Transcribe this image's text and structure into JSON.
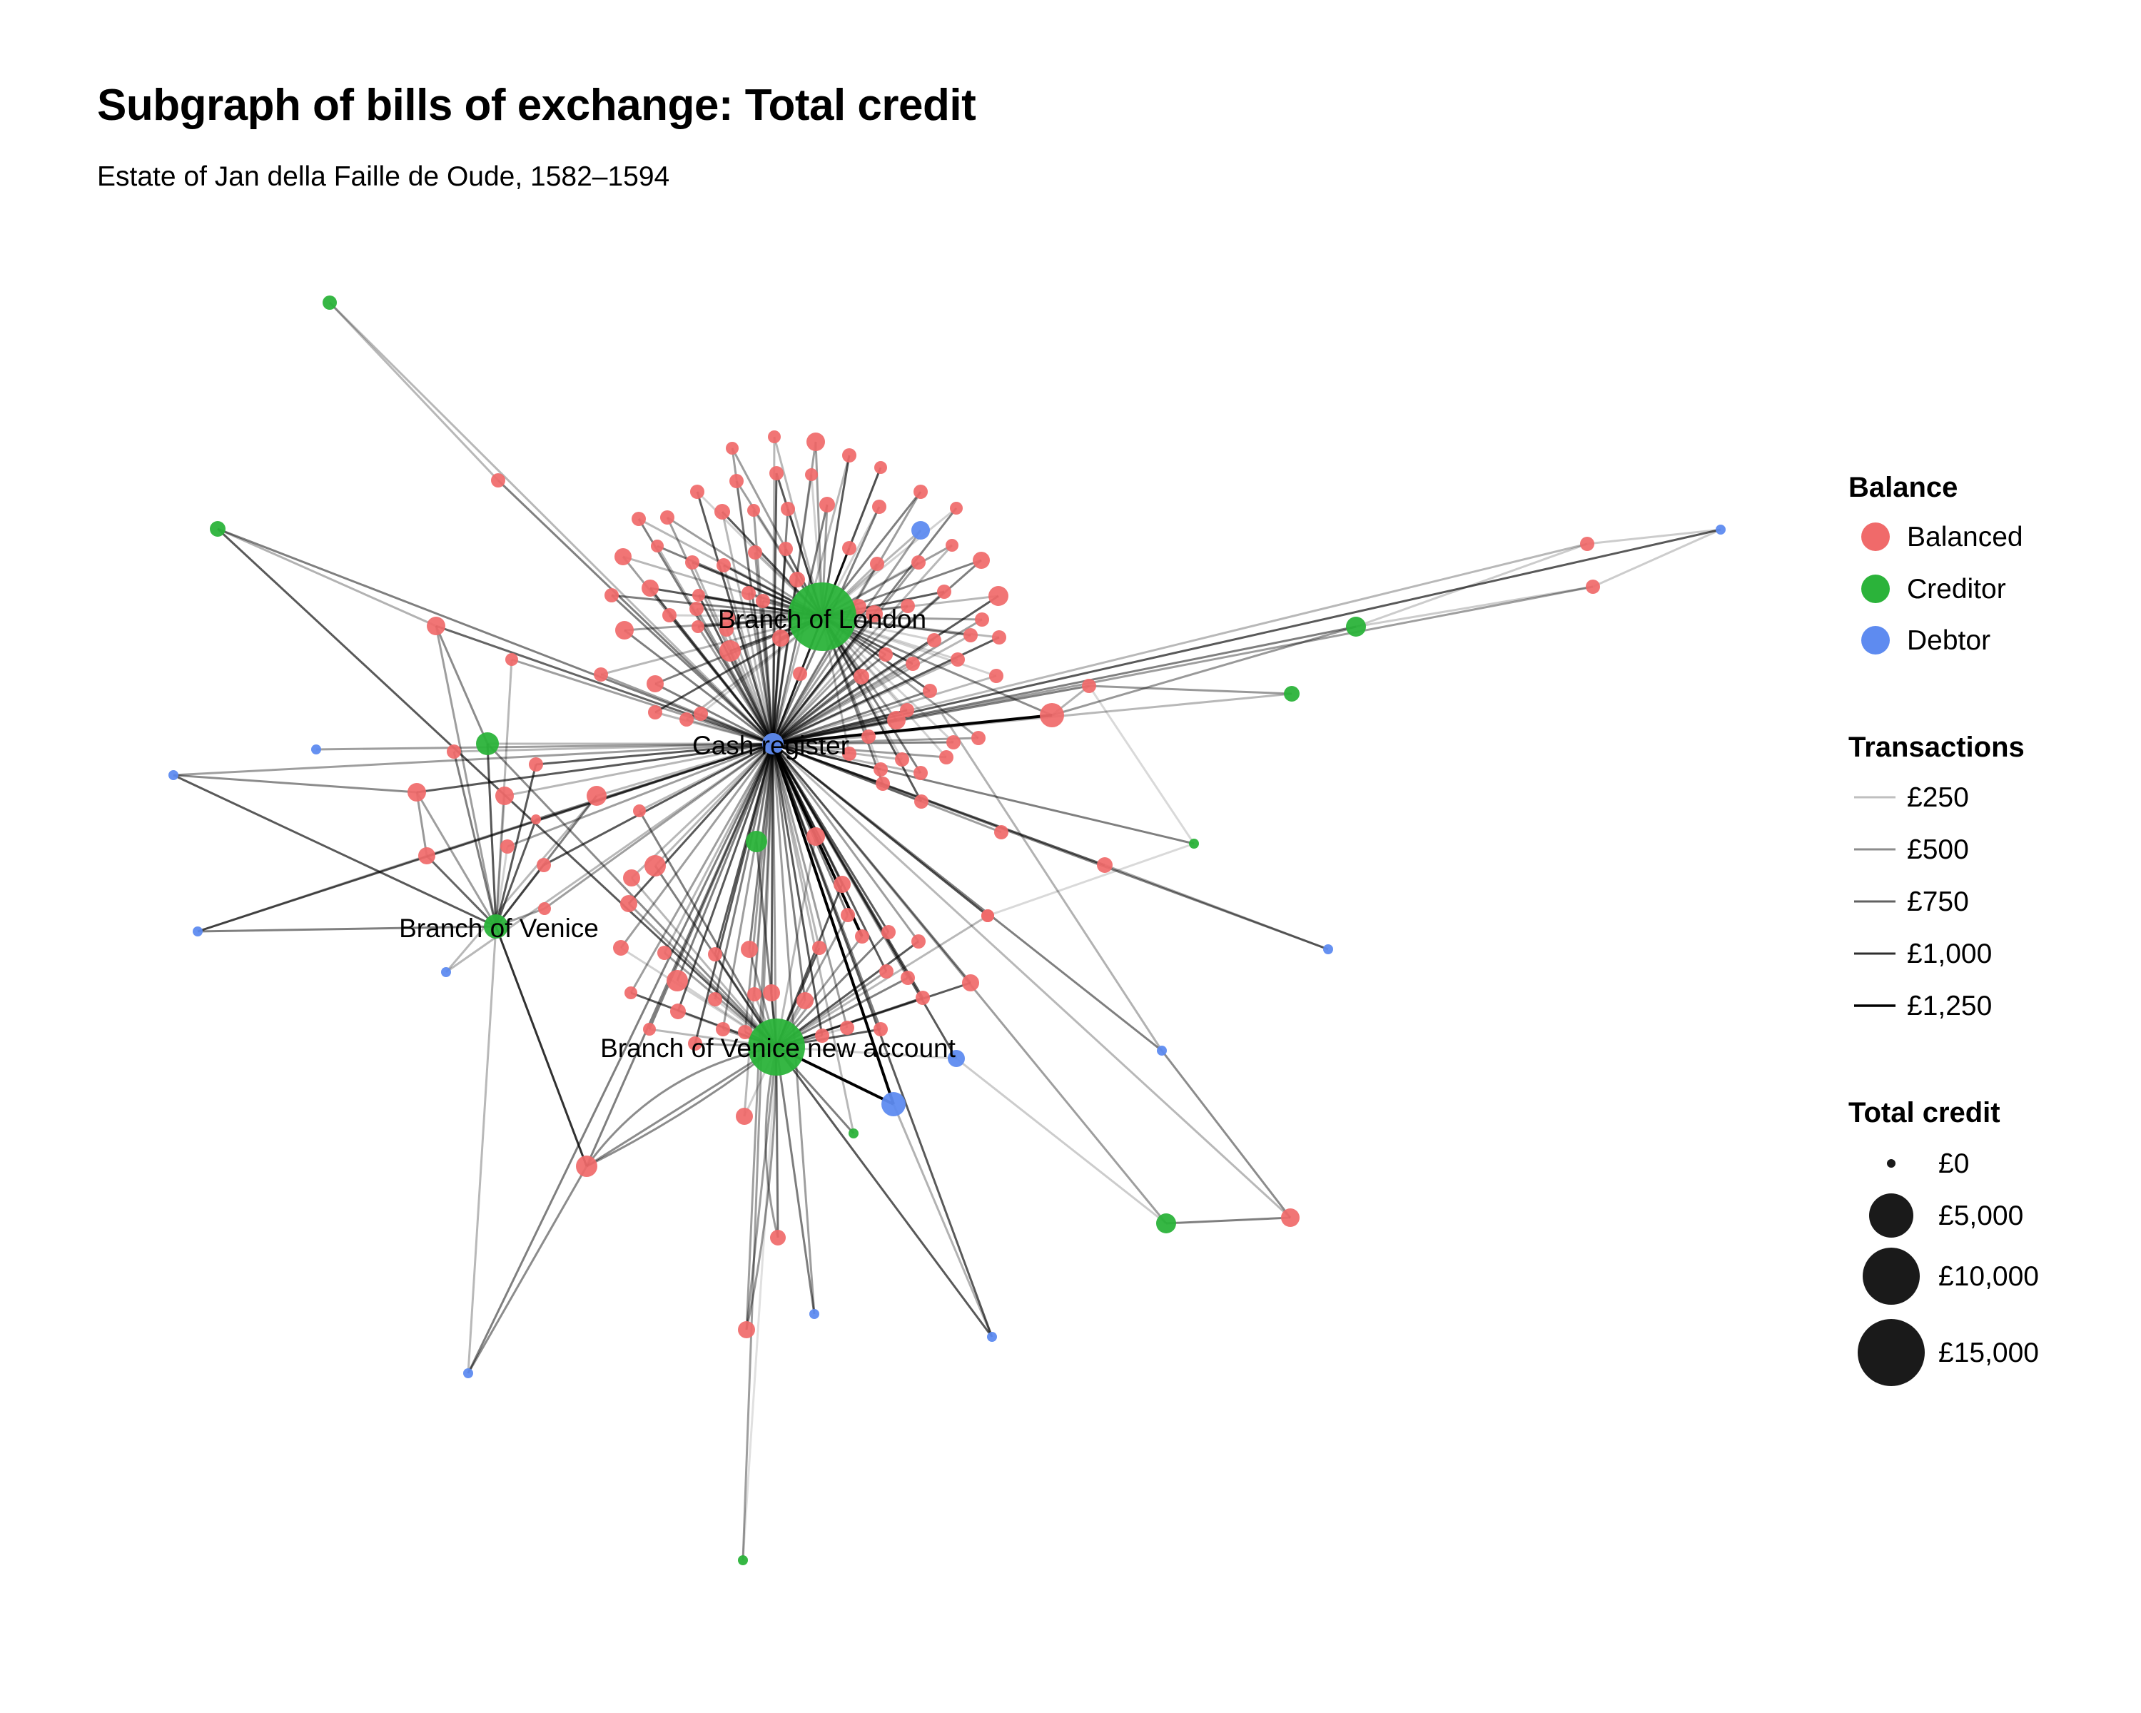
{
  "title": "Subgraph of bills of exchange: Total credit",
  "subtitle": "Estate of Jan della Faille de Oude, 1582–1594",
  "colors": {
    "Balanced": "#F06A6A",
    "Creditor": "#2BB33A",
    "Debtor": "#5E8BF0",
    "edge": "#000000",
    "size_key": "#1a1a1a"
  },
  "legend": {
    "balance": {
      "title": "Balance",
      "items": [
        "Balanced",
        "Creditor",
        "Debtor"
      ]
    },
    "transactions": {
      "title": "Transactions",
      "items": [
        "£250",
        "£500",
        "£750",
        "£1,000",
        "£1,250"
      ],
      "values": [
        250,
        500,
        750,
        1000,
        1250
      ]
    },
    "total_credit": {
      "title": "Total credit",
      "items": [
        "£0",
        "£5,000",
        "£10,000",
        "£15,000"
      ],
      "values": [
        0,
        5000,
        10000,
        15000
      ]
    }
  },
  "graph": {
    "labeled_nodes": [
      {
        "id": "london",
        "label": "Branch of London",
        "balance": "Creditor",
        "credit": 15000
      },
      {
        "id": "cash",
        "label": "Cash register",
        "balance": "Debtor",
        "credit": 600
      },
      {
        "id": "venice",
        "label": "Branch of Venice",
        "balance": "Creditor",
        "credit": 1800
      },
      {
        "id": "venice_new",
        "label": "Branch of Venice new account",
        "balance": "Creditor",
        "credit": 11000
      }
    ],
    "node_counts": {
      "Balanced": 130,
      "Creditor": 10,
      "Debtor": 14
    }
  }
}
